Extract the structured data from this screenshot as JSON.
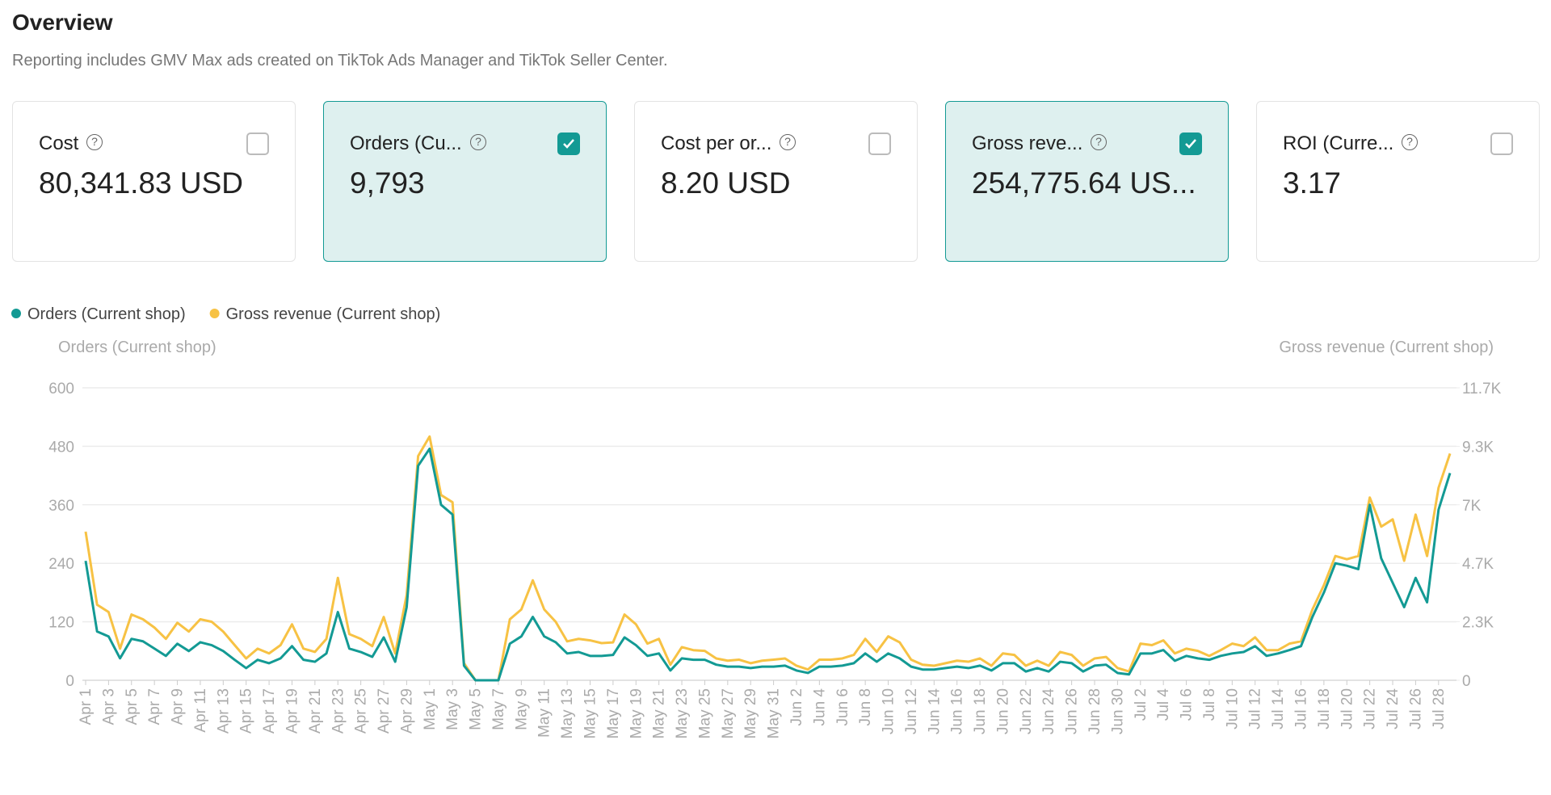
{
  "header": {
    "title": "Overview",
    "subtitle": "Reporting includes GMV Max ads created on TikTok Ads Manager and TikTok Seller Center."
  },
  "cards": [
    {
      "label": "Cost",
      "value": "80,341.83 USD",
      "selected": false
    },
    {
      "label": "Orders (Cu...",
      "value": "9,793",
      "selected": true
    },
    {
      "label": "Cost per or...",
      "value": "8.20 USD",
      "selected": false
    },
    {
      "label": "Gross reve...",
      "value": "254,775.64 US...",
      "selected": true
    },
    {
      "label": "ROI (Curre...",
      "value": "3.17",
      "selected": false
    }
  ],
  "chart_data": {
    "type": "line",
    "y_label": "Orders (Current shop)",
    "y2_label": "Gross revenue (Current shop)",
    "categories": [
      "Apr 1",
      null,
      "Apr 3",
      null,
      "Apr 5",
      null,
      "Apr 7",
      null,
      "Apr 9",
      null,
      "Apr 11",
      null,
      "Apr 13",
      null,
      "Apr 15",
      null,
      "Apr 17",
      null,
      "Apr 19",
      null,
      "Apr 21",
      null,
      "Apr 23",
      null,
      "Apr 25",
      null,
      "Apr 27",
      null,
      "Apr 29",
      null,
      "May 1",
      null,
      "May 3",
      null,
      "May 5",
      null,
      "May 7",
      null,
      "May 9",
      null,
      "May 11",
      null,
      "May 13",
      null,
      "May 15",
      null,
      "May 17",
      null,
      "May 19",
      null,
      "May 21",
      null,
      "May 23",
      null,
      "May 25",
      null,
      "May 27",
      null,
      "May 29",
      null,
      "May 31",
      null,
      "Jun 2",
      null,
      "Jun 4",
      null,
      "Jun 6",
      null,
      "Jun 8",
      null,
      "Jun 10",
      null,
      "Jun 12",
      null,
      "Jun 14",
      null,
      "Jun 16",
      null,
      "Jun 18",
      null,
      "Jun 20",
      null,
      "Jun 22",
      null,
      "Jun 24",
      null,
      "Jun 26",
      null,
      "Jun 28",
      null,
      "Jun 30",
      null,
      "Jul 2",
      null,
      "Jul 4",
      null,
      "Jul 6",
      null,
      "Jul 8",
      null,
      "Jul 10",
      null,
      "Jul 12",
      null,
      "Jul 14",
      null,
      "Jul 16",
      null,
      "Jul 18",
      null,
      "Jul 20",
      null,
      "Jul 22",
      null,
      "Jul 24",
      null,
      "Jul 26",
      null,
      "Jul 28",
      null
    ],
    "series": [
      {
        "name": "Orders (Current shop)",
        "color": "#139a94",
        "values": [
          245,
          100,
          90,
          45,
          85,
          80,
          65,
          50,
          75,
          60,
          78,
          72,
          60,
          42,
          25,
          42,
          35,
          45,
          70,
          42,
          38,
          55,
          140,
          65,
          58,
          48,
          88,
          38,
          150,
          440,
          475,
          360,
          340,
          30,
          0,
          0,
          0,
          75,
          90,
          130,
          90,
          78,
          55,
          58,
          50,
          50,
          52,
          88,
          72,
          50,
          55,
          20,
          45,
          42,
          42,
          32,
          28,
          28,
          25,
          28,
          28,
          30,
          20,
          15,
          28,
          28,
          30,
          35,
          55,
          38,
          55,
          45,
          28,
          22,
          22,
          25,
          28,
          25,
          30,
          20,
          35,
          35,
          18,
          25,
          18,
          38,
          35,
          18,
          30,
          32,
          15,
          12,
          55,
          55,
          62,
          40,
          50,
          45,
          42,
          50,
          55,
          58,
          70,
          50,
          55,
          62,
          70,
          130,
          180,
          240,
          235,
          228,
          360,
          250,
          200,
          150,
          210,
          160,
          350,
          425
        ]
      },
      {
        "name": "Gross revenue (Current shop)",
        "color": "#f7c244",
        "axis": "y2",
        "values": [
          5920,
          3010,
          2720,
          1260,
          2620,
          2430,
          2100,
          1650,
          2290,
          1940,
          2430,
          2330,
          1940,
          1400,
          870,
          1260,
          1070,
          1400,
          2230,
          1260,
          1130,
          1650,
          4080,
          1840,
          1650,
          1360,
          2520,
          1070,
          3400,
          8930,
          9710,
          7380,
          7090,
          680,
          0,
          0,
          0,
          2430,
          2820,
          3980,
          2820,
          2330,
          1550,
          1650,
          1590,
          1480,
          1510,
          2620,
          2230,
          1460,
          1650,
          620,
          1320,
          1200,
          1170,
          870,
          780,
          820,
          680,
          780,
          820,
          870,
          580,
          430,
          820,
          820,
          870,
          1010,
          1650,
          1130,
          1750,
          1510,
          820,
          620,
          580,
          680,
          780,
          740,
          870,
          580,
          1070,
          1010,
          580,
          780,
          580,
          1130,
          1010,
          580,
          870,
          930,
          490,
          350,
          1460,
          1400,
          1590,
          1070,
          1260,
          1170,
          970,
          1200,
          1460,
          1360,
          1710,
          1200,
          1200,
          1460,
          1550,
          2820,
          3790,
          4950,
          4820,
          4950,
          7280,
          6120,
          6410,
          4760,
          6600,
          4950,
          7670,
          9030
        ]
      }
    ],
    "ylim": [
      0,
      600
    ],
    "yticks": [
      0,
      120,
      240,
      360,
      480,
      600
    ],
    "y2lim": [
      0,
      11650
    ],
    "y2ticks": [
      0,
      {
        "value": 2330,
        "label": "2.3K"
      },
      {
        "value": 4660,
        "label": "4.7K"
      },
      {
        "value": 6990,
        "label": "7K"
      },
      {
        "value": 9320,
        "label": "9.3K"
      },
      {
        "value": 11650,
        "label": "11.7K"
      }
    ],
    "grid": true
  }
}
